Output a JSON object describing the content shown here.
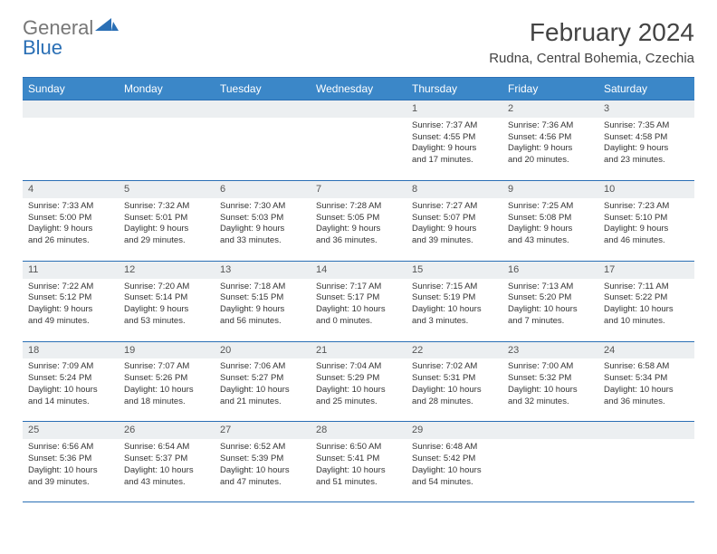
{
  "logo": {
    "gray": "General",
    "blue": "Blue"
  },
  "title": "February 2024",
  "location": "Rudna, Central Bohemia, Czechia",
  "headers": [
    "Sunday",
    "Monday",
    "Tuesday",
    "Wednesday",
    "Thursday",
    "Friday",
    "Saturday"
  ],
  "colors": {
    "header_bg": "#3b87c8",
    "header_text": "#ffffff",
    "border": "#2a6fb5",
    "daynum_bg": "#eceff1",
    "text": "#333333"
  },
  "weeks": [
    [
      null,
      null,
      null,
      null,
      {
        "n": "1",
        "sr": "7:37 AM",
        "ss": "4:55 PM",
        "d1": "Daylight: 9 hours",
        "d2": "and 17 minutes."
      },
      {
        "n": "2",
        "sr": "7:36 AM",
        "ss": "4:56 PM",
        "d1": "Daylight: 9 hours",
        "d2": "and 20 minutes."
      },
      {
        "n": "3",
        "sr": "7:35 AM",
        "ss": "4:58 PM",
        "d1": "Daylight: 9 hours",
        "d2": "and 23 minutes."
      }
    ],
    [
      {
        "n": "4",
        "sr": "7:33 AM",
        "ss": "5:00 PM",
        "d1": "Daylight: 9 hours",
        "d2": "and 26 minutes."
      },
      {
        "n": "5",
        "sr": "7:32 AM",
        "ss": "5:01 PM",
        "d1": "Daylight: 9 hours",
        "d2": "and 29 minutes."
      },
      {
        "n": "6",
        "sr": "7:30 AM",
        "ss": "5:03 PM",
        "d1": "Daylight: 9 hours",
        "d2": "and 33 minutes."
      },
      {
        "n": "7",
        "sr": "7:28 AM",
        "ss": "5:05 PM",
        "d1": "Daylight: 9 hours",
        "d2": "and 36 minutes."
      },
      {
        "n": "8",
        "sr": "7:27 AM",
        "ss": "5:07 PM",
        "d1": "Daylight: 9 hours",
        "d2": "and 39 minutes."
      },
      {
        "n": "9",
        "sr": "7:25 AM",
        "ss": "5:08 PM",
        "d1": "Daylight: 9 hours",
        "d2": "and 43 minutes."
      },
      {
        "n": "10",
        "sr": "7:23 AM",
        "ss": "5:10 PM",
        "d1": "Daylight: 9 hours",
        "d2": "and 46 minutes."
      }
    ],
    [
      {
        "n": "11",
        "sr": "7:22 AM",
        "ss": "5:12 PM",
        "d1": "Daylight: 9 hours",
        "d2": "and 49 minutes."
      },
      {
        "n": "12",
        "sr": "7:20 AM",
        "ss": "5:14 PM",
        "d1": "Daylight: 9 hours",
        "d2": "and 53 minutes."
      },
      {
        "n": "13",
        "sr": "7:18 AM",
        "ss": "5:15 PM",
        "d1": "Daylight: 9 hours",
        "d2": "and 56 minutes."
      },
      {
        "n": "14",
        "sr": "7:17 AM",
        "ss": "5:17 PM",
        "d1": "Daylight: 10 hours",
        "d2": "and 0 minutes."
      },
      {
        "n": "15",
        "sr": "7:15 AM",
        "ss": "5:19 PM",
        "d1": "Daylight: 10 hours",
        "d2": "and 3 minutes."
      },
      {
        "n": "16",
        "sr": "7:13 AM",
        "ss": "5:20 PM",
        "d1": "Daylight: 10 hours",
        "d2": "and 7 minutes."
      },
      {
        "n": "17",
        "sr": "7:11 AM",
        "ss": "5:22 PM",
        "d1": "Daylight: 10 hours",
        "d2": "and 10 minutes."
      }
    ],
    [
      {
        "n": "18",
        "sr": "7:09 AM",
        "ss": "5:24 PM",
        "d1": "Daylight: 10 hours",
        "d2": "and 14 minutes."
      },
      {
        "n": "19",
        "sr": "7:07 AM",
        "ss": "5:26 PM",
        "d1": "Daylight: 10 hours",
        "d2": "and 18 minutes."
      },
      {
        "n": "20",
        "sr": "7:06 AM",
        "ss": "5:27 PM",
        "d1": "Daylight: 10 hours",
        "d2": "and 21 minutes."
      },
      {
        "n": "21",
        "sr": "7:04 AM",
        "ss": "5:29 PM",
        "d1": "Daylight: 10 hours",
        "d2": "and 25 minutes."
      },
      {
        "n": "22",
        "sr": "7:02 AM",
        "ss": "5:31 PM",
        "d1": "Daylight: 10 hours",
        "d2": "and 28 minutes."
      },
      {
        "n": "23",
        "sr": "7:00 AM",
        "ss": "5:32 PM",
        "d1": "Daylight: 10 hours",
        "d2": "and 32 minutes."
      },
      {
        "n": "24",
        "sr": "6:58 AM",
        "ss": "5:34 PM",
        "d1": "Daylight: 10 hours",
        "d2": "and 36 minutes."
      }
    ],
    [
      {
        "n": "25",
        "sr": "6:56 AM",
        "ss": "5:36 PM",
        "d1": "Daylight: 10 hours",
        "d2": "and 39 minutes."
      },
      {
        "n": "26",
        "sr": "6:54 AM",
        "ss": "5:37 PM",
        "d1": "Daylight: 10 hours",
        "d2": "and 43 minutes."
      },
      {
        "n": "27",
        "sr": "6:52 AM",
        "ss": "5:39 PM",
        "d1": "Daylight: 10 hours",
        "d2": "and 47 minutes."
      },
      {
        "n": "28",
        "sr": "6:50 AM",
        "ss": "5:41 PM",
        "d1": "Daylight: 10 hours",
        "d2": "and 51 minutes."
      },
      {
        "n": "29",
        "sr": "6:48 AM",
        "ss": "5:42 PM",
        "d1": "Daylight: 10 hours",
        "d2": "and 54 minutes."
      },
      null,
      null
    ]
  ],
  "labels": {
    "sunrise": "Sunrise: ",
    "sunset": "Sunset: "
  }
}
